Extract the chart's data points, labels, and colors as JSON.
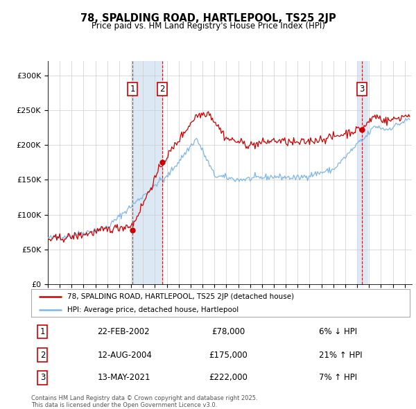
{
  "title": "78, SPALDING ROAD, HARTLEPOOL, TS25 2JP",
  "subtitle": "Price paid vs. HM Land Registry's House Price Index (HPI)",
  "ylim": [
    0,
    320000
  ],
  "yticks": [
    0,
    50000,
    100000,
    150000,
    200000,
    250000,
    300000
  ],
  "ytick_labels": [
    "£0",
    "£50K",
    "£100K",
    "£150K",
    "£200K",
    "£250K",
    "£300K"
  ],
  "legend_line1": "78, SPALDING ROAD, HARTLEPOOL, TS25 2JP (detached house)",
  "legend_line2": "HPI: Average price, detached house, Hartlepool",
  "transaction1_date": "22-FEB-2002",
  "transaction1_price": "£78,000",
  "transaction1_hpi": "6% ↓ HPI",
  "transaction2_date": "12-AUG-2004",
  "transaction2_price": "£175,000",
  "transaction2_hpi": "21% ↑ HPI",
  "transaction3_date": "13-MAY-2021",
  "transaction3_price": "£222,000",
  "transaction3_hpi": "7% ↑ HPI",
  "footnote": "Contains HM Land Registry data © Crown copyright and database right 2025.\nThis data is licensed under the Open Government Licence v3.0.",
  "hpi_color": "#7eb6e8",
  "price_color": "#cc0000",
  "shaded_color": "#dce9f5",
  "grid_color": "#cccccc",
  "background_color": "#ffffff"
}
